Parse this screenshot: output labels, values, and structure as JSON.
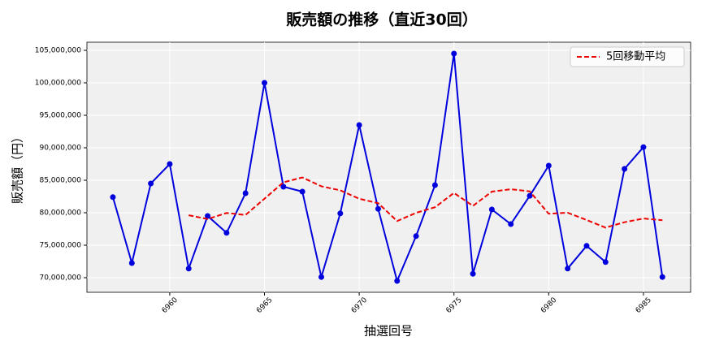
{
  "chart_data": {
    "type": "line",
    "title": "販売額の推移（直近30回）",
    "x_label": "抽選回号",
    "y_label": "販売額（円）",
    "x": [
      6957,
      6958,
      6959,
      6960,
      6961,
      6962,
      6963,
      6964,
      6965,
      6966,
      6967,
      6968,
      6969,
      6970,
      6971,
      6972,
      6973,
      6974,
      6975,
      6976,
      6977,
      6978,
      6979,
      6980,
      6981,
      6982,
      6983,
      6984,
      6985,
      6986
    ],
    "series": [
      {
        "color": "#0000dd",
        "marker": true,
        "dashed": false,
        "values": [
          82400000,
          72250000,
          84500000,
          87500000,
          71400000,
          79500000,
          76900000,
          83000000,
          100000000,
          84000000,
          83250000,
          70100000,
          79900000,
          93500000,
          80600000,
          69500000,
          76400000,
          84250000,
          104500000,
          70600000,
          80500000,
          78250000,
          82600000,
          87250000,
          71400000,
          74900000,
          72400000,
          86750000,
          90100000,
          70100000
        ]
      },
      {
        "name": "5回移動平均",
        "color": "#ee0000",
        "marker": false,
        "dashed": true,
        "values": [
          null,
          null,
          null,
          null,
          79610000,
          79030000,
          79960000,
          79660000,
          82160000,
          84680000,
          85430000,
          84070000,
          83450000,
          82150000,
          81470000,
          78720000,
          79980000,
          80850000,
          83050000,
          81050000,
          83250000,
          83620000,
          83290000,
          79840000,
          80000000,
          78880000,
          77710000,
          78540000,
          79110000,
          78850000
        ]
      }
    ],
    "xlim": [
      6955.63,
      6987.49
    ],
    "ylim": [
      67750000,
      106250000
    ],
    "xticks": [
      6960,
      6965,
      6970,
      6975,
      6980,
      6985
    ],
    "yticks": [
      {
        "value": 70000000,
        "label": "70,000,000"
      },
      {
        "value": 75000000,
        "label": "75,000,000"
      },
      {
        "value": 80000000,
        "label": "80,000,000"
      },
      {
        "value": 85000000,
        "label": "85,000,000"
      },
      {
        "value": 90000000,
        "label": "90,000,000"
      },
      {
        "value": 95000000,
        "label": "95,000,000"
      },
      {
        "value": 100000000,
        "label": "100,000,000"
      },
      {
        "value": 105000000,
        "label": "105,000,000"
      }
    ],
    "grid": true,
    "legend": "upper right"
  }
}
